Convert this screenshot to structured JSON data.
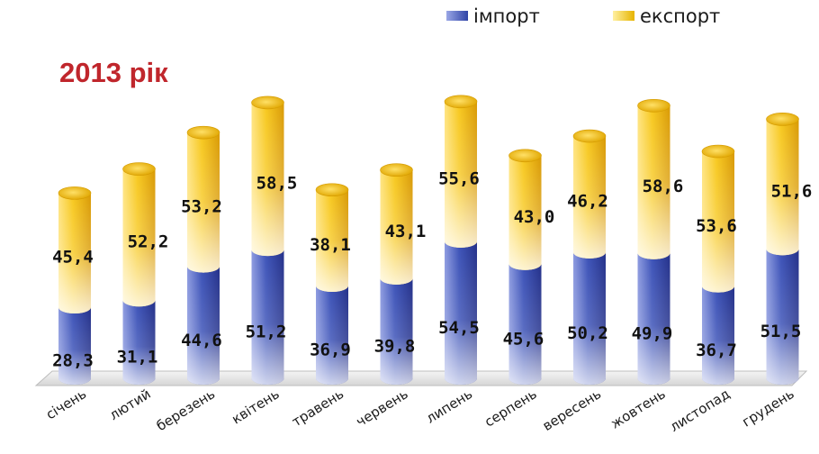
{
  "chart_data": {
    "type": "bar",
    "stacked": true,
    "title": "2013 рік",
    "categories": [
      "січень",
      "лютий",
      "березень",
      "квітень",
      "травень",
      "червень",
      "липень",
      "серпень",
      "вересень",
      "жовтень",
      "листопад",
      "грудень"
    ],
    "series": [
      {
        "name": "імпорт",
        "color": "#3a4fb0",
        "values": [
          28.3,
          31.1,
          44.6,
          51.2,
          36.9,
          39.8,
          54.5,
          45.6,
          50.2,
          49.9,
          36.7,
          51.5
        ]
      },
      {
        "name": "експорт",
        "color": "#f2c21a",
        "values": [
          45.4,
          52.2,
          53.2,
          58.5,
          38.1,
          43.1,
          55.6,
          43.0,
          46.2,
          58.6,
          53.6,
          51.6
        ]
      }
    ],
    "data_labels": {
      "імпорт": [
        "28,3",
        "31,1",
        "44,6",
        "51,2",
        "36,9",
        "39,8",
        "54,5",
        "45,6",
        "50,2",
        "49,9",
        "36,7",
        "51,5"
      ],
      "експорт": [
        "45,4",
        "52,2",
        "53,2",
        "58,5",
        "38,1",
        "43,1",
        "55,6",
        "43,0",
        "46,2",
        "58,6",
        "53,6",
        "51,6"
      ]
    },
    "legend_position": "top-right",
    "grid": false,
    "xlabel": "",
    "ylabel": ""
  }
}
